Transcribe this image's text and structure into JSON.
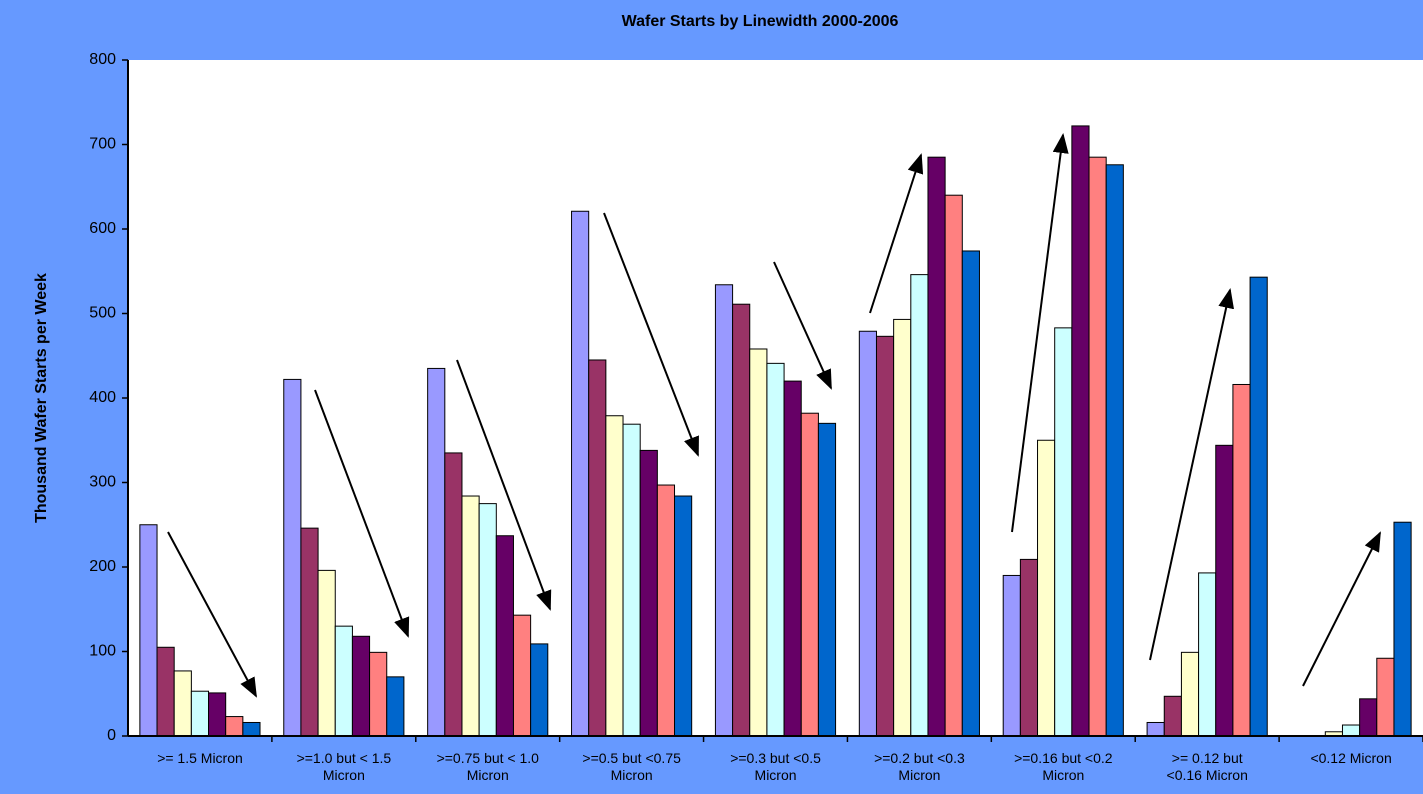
{
  "chart_data": {
    "type": "bar",
    "title": "Wafer Starts by Linewidth 2000-2006",
    "y_label": "Thousand Wafer Starts per Week",
    "categories": [
      ">= 1.5 Micron",
      ">=1.0 but < 1.5\nMicron",
      ">=0.75 but < 1.0\nMicron",
      ">=0.5 but <0.75\nMicron",
      ">=0.3 but <0.5\nMicron",
      ">=0.2 but <0.3\nMicron",
      ">=0.16 but <0.2\nMicron",
      ">= 0.12 but\n<0.16 Micron",
      "<0.12 Micron"
    ],
    "series": [
      {
        "color": "#9999ff",
        "values": [
          250,
          422,
          435,
          621,
          534,
          479,
          190,
          16,
          0
        ]
      },
      {
        "color": "#993366",
        "values": [
          105,
          246,
          335,
          445,
          511,
          473,
          209,
          47,
          0
        ]
      },
      {
        "color": "#ffffcc",
        "values": [
          77,
          196,
          284,
          379,
          458,
          493,
          350,
          99,
          5
        ]
      },
      {
        "color": "#ccffff",
        "values": [
          53,
          130,
          275,
          369,
          441,
          546,
          483,
          193,
          13
        ]
      },
      {
        "color": "#660066",
        "values": [
          51,
          118,
          237,
          338,
          420,
          685,
          722,
          344,
          44
        ]
      },
      {
        "color": "#ff8080",
        "values": [
          23,
          99,
          143,
          297,
          382,
          640,
          685,
          416,
          92
        ]
      },
      {
        "color": "#0066cc",
        "values": [
          16,
          70,
          109,
          284,
          370,
          574,
          676,
          543,
          253
        ]
      }
    ],
    "ylim": [
      0,
      800
    ],
    "yticks": [
      0,
      100,
      200,
      300,
      400,
      500,
      600,
      700,
      800
    ],
    "grid": false
  }
}
